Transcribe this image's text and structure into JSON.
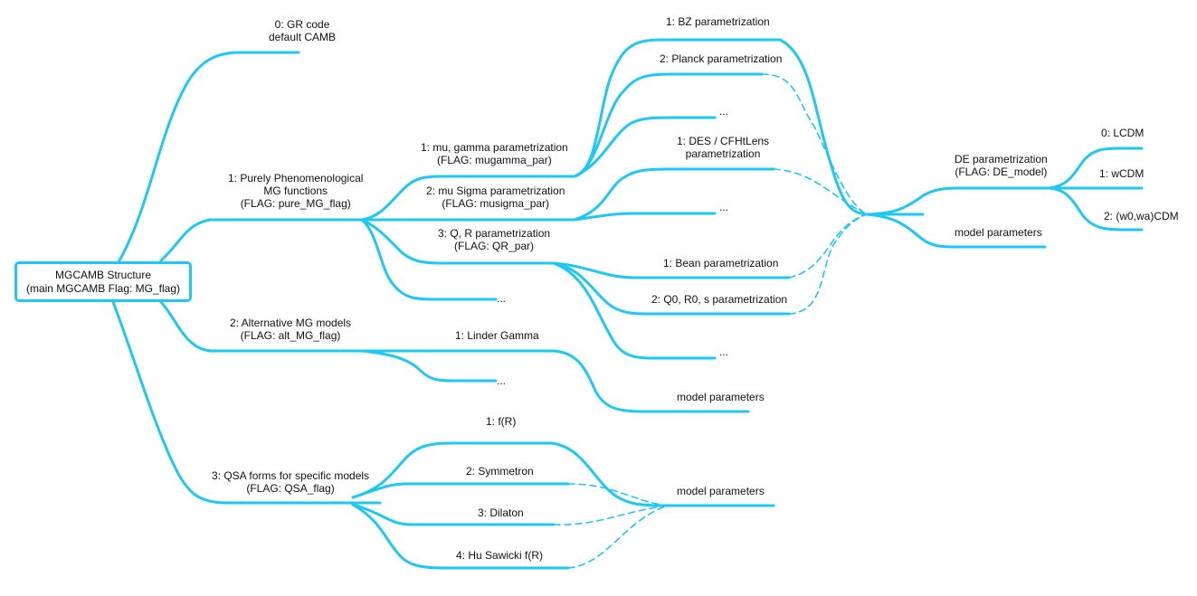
{
  "root": {
    "line1": "MGCAMB Structure",
    "line2": "(main MGCAMB Flag: MG_flag)"
  },
  "branch0": {
    "line1": "0: GR code",
    "line2": "default CAMB"
  },
  "branch1": {
    "line1": "1: Purely Phenomenological",
    "line2": "MG functions",
    "line3": "(FLAG: pure_MG_flag)",
    "mugamma": {
      "line1": "1: mu, gamma parametrization",
      "line2": "(FLAG: mugamma_par)"
    },
    "mugamma_children": [
      "1: BZ parametrization",
      "2: Planck parametrization",
      "..."
    ],
    "musigma": {
      "line1": "2: mu Sigma parametrization",
      "line2": "(FLAG: musigma_par)"
    },
    "musigma_children": {
      "des_line1": "1: DES / CFHtLens",
      "des_line2": "parametrization",
      "ellipsis": "..."
    },
    "qr": {
      "line1": "3: Q, R parametrization",
      "line2": "(FLAG: QR_par)"
    },
    "qr_children": [
      "1: Bean parametrization",
      "2: Q0, R0, s parametrization",
      "..."
    ],
    "ellipsis": "..."
  },
  "branch2": {
    "line1": "2:  Alternative MG models",
    "line2": "(FLAG: alt_MG_flag)",
    "linder": "1: Linder Gamma",
    "linder_params": "model parameters",
    "ellipsis": "..."
  },
  "branch3": {
    "line1": "3: QSA forms for specific models",
    "line2": "(FLAG: QSA_flag)",
    "children": [
      "1: f(R)",
      "2: Symmetron",
      "3: Dilaton",
      "4: Hu Sawicki f(R)"
    ],
    "params": "model parameters"
  },
  "de": {
    "line1": "DE parametrization",
    "line2": "(FLAG: DE_model)",
    "children": [
      "0: LCDM",
      "1: wCDM",
      "2: (w0,wa)CDM"
    ],
    "params": "model parameters"
  },
  "colors": {
    "edge": "#1ec8f5",
    "text": "#111111"
  }
}
